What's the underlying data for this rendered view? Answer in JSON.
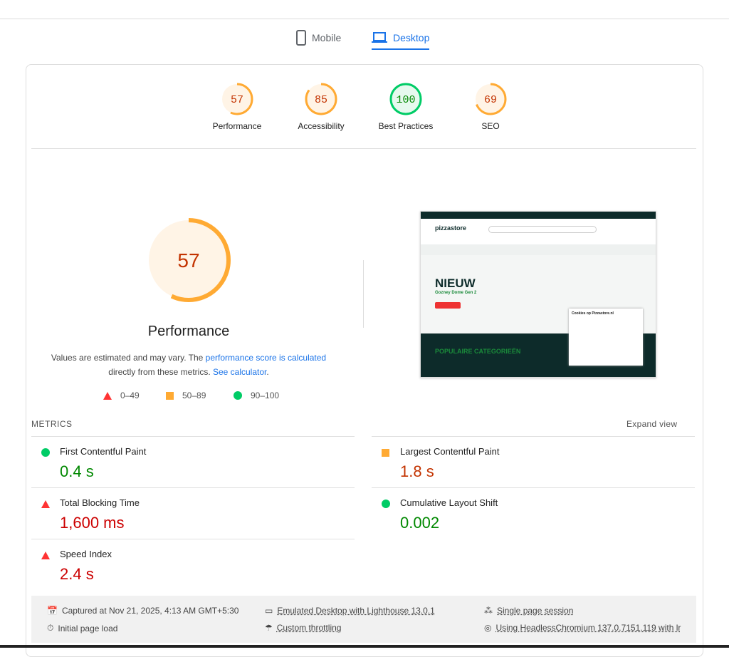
{
  "tabs": [
    {
      "label": "Mobile",
      "icon": "phone-icon"
    },
    {
      "label": "Desktop",
      "icon": "laptop-icon",
      "active": true
    }
  ],
  "categories": [
    {
      "label": "Performance",
      "score": 57,
      "color": "#fa3"
    },
    {
      "label": "Accessibility",
      "score": 85,
      "color": "#fa3"
    },
    {
      "label": "Best Practices",
      "score": 100,
      "color": "#0c6"
    },
    {
      "label": "SEO",
      "score": 69,
      "color": "#fa3"
    }
  ],
  "perf": {
    "score": 57,
    "title": "Performance",
    "desc1": "Values are estimated and may vary. The ",
    "link1": "performance score is calculated",
    "desc2": "directly from these metrics. ",
    "link2": "See calculator",
    "desc3": "."
  },
  "legend": {
    "fail": "0–49",
    "average": "50–89",
    "pass": "90–100"
  },
  "screenshot": {
    "headline": "NIEUW",
    "sub": "Gozney Dome Gen 2",
    "section": "POPULAIRE CATEGORIEËN",
    "cookie_title": "Cookies op Pizzastore.nl"
  },
  "metrics": {
    "heading": "METRICS",
    "expand": "Expand view",
    "items": [
      {
        "label": "First Contentful Paint",
        "value": "0.4 s",
        "status": "pass"
      },
      {
        "label": "Largest Contentful Paint",
        "value": "1.8 s",
        "status": "average"
      },
      {
        "label": "Total Blocking Time",
        "value": "1,600 ms",
        "status": "fail"
      },
      {
        "label": "Cumulative Layout Shift",
        "value": "0.002",
        "status": "pass"
      },
      {
        "label": "Speed Index",
        "value": "2.4 s",
        "status": "fail"
      }
    ]
  },
  "footer": {
    "captured": "Captured at Nov 21, 2025, 4:13 AM GMT+5:30",
    "load": "Initial page load",
    "emulated": "Emulated Desktop with Lighthouse 13.0.1",
    "throttling": "Custom throttling",
    "session": "Single page session",
    "browser": "Using HeadlessChromium 137.0.7151.119 with lr"
  }
}
